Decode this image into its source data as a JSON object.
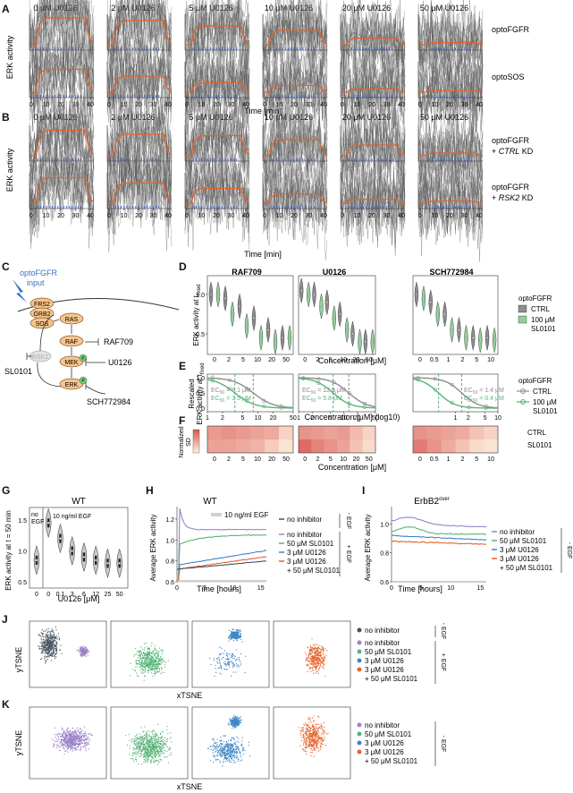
{
  "panel_letters": [
    "A",
    "B",
    "C",
    "D",
    "E",
    "F",
    "G",
    "H",
    "I",
    "J",
    "K"
  ],
  "colors": {
    "orange": "#e4632b",
    "green": "#59b37a",
    "gray": "#8c8c8c",
    "purple": "#9b82c8",
    "blue": "#3d86c6",
    "navy": "#44505f",
    "lightgreen": "#8fd19b",
    "heat_low": "#fbebd4",
    "heat_high": "#d9534f",
    "pulse": "#4a6bd6"
  },
  "panelA": {
    "concentrations": [
      "0 μM U0126",
      "2 μM U0126",
      "5 μM U0126",
      "10 μM U0126",
      "20 μM U0126",
      "50 μM U0126"
    ],
    "rows": [
      "optoFGFR",
      "optoSOS"
    ],
    "ylabel": "ERK activity",
    "xticks": [
      "0",
      "10",
      "20",
      "30",
      "40"
    ],
    "xlabel": "Time [min]"
  },
  "panelB": {
    "concentrations": [
      "0 μM U0126",
      "2 μM U0126",
      "5 μM U0126",
      "10 μM U0126",
      "20 μM U0126",
      "50 μM U0126"
    ],
    "row1_label": "optoFGFR",
    "row1_label2_pre": "+ ",
    "row1_label2_it": "CTRL",
    "row1_label2_post": " KD",
    "row2_label": "optoFGFR",
    "row2_label2_pre": "+ ",
    "row2_label2_it": "RSK2",
    "row2_label2_post": " KD",
    "ylabel": "ERK activity",
    "xticks": [
      "0",
      "10",
      "20",
      "30",
      "40"
    ],
    "xlabel": "Time [min]"
  },
  "panelC": {
    "title1": "optoFGFR",
    "title2": "input",
    "nodes": [
      "FRS2",
      "GRB2",
      "SOS",
      "RAS",
      "RAF",
      "MEK",
      "ERK",
      "RSK2"
    ],
    "phospho": "P",
    "inhibitors": [
      "RAF709",
      "U0126",
      "SCH772984",
      "SL0101"
    ]
  },
  "panelD": {
    "titles": [
      "RAF709",
      "U0126",
      "SCH772984"
    ],
    "ylabel": "ERK activity at t",
    "ylabel_sub": "fixed",
    "yticks": [
      "1.0",
      "0.5"
    ],
    "x_raf": [
      "0",
      "2",
      "5",
      "10",
      "20",
      "50"
    ],
    "x_u": [
      "0",
      "2",
      "5",
      "10",
      "20",
      "50"
    ],
    "x_sch": [
      "0",
      "0.5",
      "1",
      "2",
      "5",
      "10"
    ],
    "xlabel": "Concentration [μM]",
    "legend_title": "optoFGFR",
    "legend_ctrl": "CTRL",
    "legend_sl1": "100 μM",
    "legend_sl2": "SL0101"
  },
  "panelE": {
    "ylabel1": "Rescaled",
    "ylabel2": "ERK activity at t",
    "ylabel_sub": "fixed",
    "yticks": [
      "1.0",
      "0.5",
      "0.0"
    ],
    "ec_raf_ctrl": "= 8.1 μM",
    "ec_raf_sl": "= 3.5 μM",
    "ec_u_ctrl": "= 12.9 μM",
    "ec_u_sl": "= 5.8 μM",
    "ec_sch_ctrl": "= 1.4 μM",
    "ec_sch_sl": "= 0.4 μM",
    "ec_prefix": "EC",
    "ec_sub": "50",
    "xticks_raf": [
      "1",
      "2",
      "5",
      "10",
      "20",
      "50"
    ],
    "xticks_u": [
      "1",
      "2",
      "5",
      "10",
      "20",
      "50"
    ],
    "xticks_sch": [
      "1",
      "2",
      "5",
      "10"
    ],
    "xlabel": "Concentration [μM] (log10)",
    "legend_title": "optoFGFR",
    "legend_ctrl": "CTRL",
    "legend_sl1": "100 μM",
    "legend_sl2": "SL0101"
  },
  "panelF": {
    "ylabel1": "Normalized",
    "ylabel2": "SD",
    "rows": [
      "CTRL",
      "SL0101"
    ],
    "x_raf": [
      "0",
      "2",
      "5",
      "10",
      "20",
      "50"
    ],
    "x_u": [
      "0",
      "2",
      "5",
      "10",
      "20",
      "50"
    ],
    "x_sch": [
      "0",
      "0.5",
      "1",
      "2",
      "5",
      "10"
    ],
    "xlabel": "Concentration [μM]",
    "heat": [
      [
        [
          0.55,
          0.6,
          0.55,
          0.5,
          0.45,
          0.2
        ],
        [
          0.5,
          0.5,
          0.45,
          0.4,
          0.25,
          0.1
        ]
      ],
      [
        [
          0.6,
          0.55,
          0.5,
          0.55,
          0.35,
          0.2
        ],
        [
          0.85,
          0.7,
          0.6,
          0.5,
          0.3,
          0.15
        ]
      ],
      [
        [
          0.6,
          0.55,
          0.5,
          0.45,
          0.3,
          0.2
        ],
        [
          0.75,
          0.6,
          0.45,
          0.3,
          0.15,
          0.1
        ]
      ]
    ]
  },
  "panelG": {
    "title": "WT",
    "ylabel": "ERK activity at t = 50 min",
    "yticks": [
      "1.5",
      "1.0",
      "0.5"
    ],
    "xticks": [
      "0",
      "0",
      "0.1",
      "3",
      "6",
      "12",
      "25",
      "50"
    ],
    "xlabel": "U0126 [μM]",
    "noegf1": "no",
    "noegf2": "EGF",
    "egf_label": "+ 10 ng/ml EGF",
    "medians": [
      0.85,
      1.45,
      1.2,
      1.0,
      0.9,
      0.85,
      0.8,
      0.8
    ]
  },
  "panelH": {
    "title": "WT",
    "ylabel": "Average ERK activity",
    "yticks": [
      "1.2",
      "1.0",
      "0.8",
      "0.6"
    ],
    "xticks": [
      "0",
      "5",
      "10",
      "15"
    ],
    "xlabel": "Time [hours]",
    "egf_bar": "10 ng/ml EGF",
    "legend": [
      "no inhibitor",
      "no inhibitor",
      "50 μM SL0101",
      "3 μM U0126",
      "3 μM U0126",
      "+ 50 μM SL0101"
    ],
    "minus_egf": "- EGF",
    "plus_egf": "+ EGF"
  },
  "panelI": {
    "title": "ErbB2",
    "title_sup": "over",
    "ylabel": "Average ERK activity",
    "yticks": [
      "1.0",
      "0.8",
      "0.6"
    ],
    "xticks": [
      "0",
      "5",
      "10",
      "15"
    ],
    "xlabel": "Time [hours]",
    "legend": [
      "no inhibitor",
      "50 μM SL0101",
      "3 μM U0126",
      "3 μM U0126",
      "+ 50 μM SL0101"
    ],
    "minus_egf": "- EGF"
  },
  "panelJ": {
    "ylabel": "yTSNE",
    "xlabel": "xTSNE",
    "legend": [
      "no inhibitor",
      "no inhibitor",
      "50 μM SL0101",
      "3 μM U0126",
      "3 μM U0126",
      "+ 50 μM SL0101"
    ],
    "minus_egf": "- EGF",
    "plus_egf": "+ EGF"
  },
  "panelK": {
    "ylabel": "yTSNE",
    "xlabel": "xTSNE",
    "legend": [
      "no inhibitor",
      "50 μM SL0101",
      "3 μM U0126",
      "3 μM U0126",
      "+ 50 μM SL0101"
    ],
    "minus_egf": "- EGF"
  }
}
